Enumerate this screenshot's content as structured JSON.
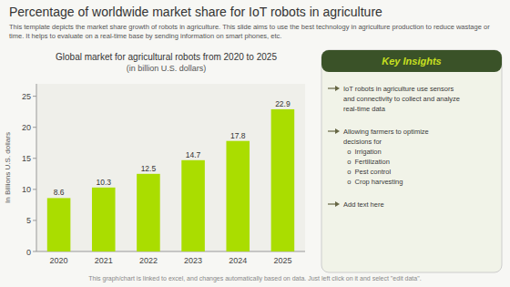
{
  "title": "Percentage of worldwide market share for IoT robots in agriculture",
  "subtitle": "This template depicts the market share growth of robots in agriculture. This slide aims to use the best technology in agriculture production to reduce wastage or time. It helps to evaluate on a real-time base by sending information on smart phones, etc.",
  "chart_data": {
    "type": "bar",
    "title": "Global market for agricultural robots from 2020 to 2025",
    "subtitle": "(in billion U.S. dollars)",
    "y_label": "In Billions U.S. dollars",
    "categories": [
      "2020",
      "2021",
      "2022",
      "2023",
      "2024",
      "2025"
    ],
    "values": [
      8.6,
      10.3,
      12.5,
      14.7,
      17.8,
      22.9
    ],
    "color": "#aadd00",
    "ylim": [
      0,
      27
    ],
    "yticks": [
      0,
      5,
      10,
      15,
      20,
      25
    ],
    "grid": false,
    "data_labels": true
  },
  "key_insights": {
    "heading": "Key Insights",
    "bullets": [
      [
        "IoT robots in agriculture use sensors",
        "and connectivity to collect and analyze",
        "real-time data"
      ],
      [
        "Allowing farmers to optimize",
        "decisions for",
        "  o  Irrigation",
        "  o  Fertilization",
        "  o  Pest control",
        "  o  Crop harvesting"
      ],
      [
        "Add text here"
      ]
    ]
  },
  "footer": "This graph/chart is linked to excel, and changes automatically based on data. Just left click on it and select \"edit data\"."
}
